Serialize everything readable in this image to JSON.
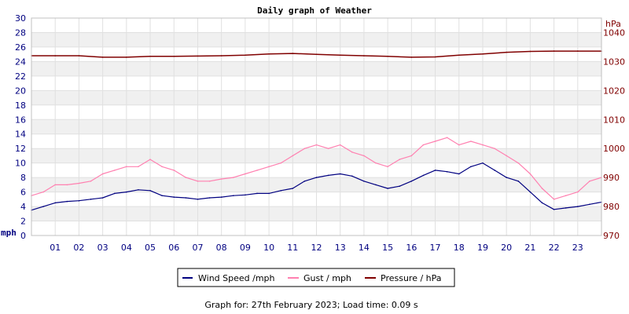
{
  "chart_data": {
    "type": "line",
    "title": "Daily graph of Weather",
    "left_axis": {
      "unit_label": "mph",
      "ylim": [
        0,
        30
      ],
      "ticks": [
        "0",
        "2",
        "4",
        "6",
        "8",
        "10",
        "12",
        "14",
        "16",
        "18",
        "20",
        "22",
        "24",
        "26",
        "28",
        "30"
      ]
    },
    "right_axis": {
      "unit_label": "hPa",
      "ylim": [
        970,
        1045
      ],
      "ticks": [
        "970",
        "980",
        "990",
        "1000",
        "1010",
        "1020",
        "1030",
        "1040"
      ]
    },
    "x_axis": {
      "xlim": [
        0,
        24
      ],
      "ticks": [
        "01",
        "02",
        "03",
        "04",
        "05",
        "06",
        "07",
        "08",
        "09",
        "10",
        "11",
        "12",
        "13",
        "14",
        "15",
        "16",
        "17",
        "18",
        "19",
        "20",
        "21",
        "22",
        "23"
      ]
    },
    "grid": true,
    "legend_position": "bottom",
    "series": [
      {
        "name": "Wind Speed /mph",
        "axis": "left",
        "color": "#000080",
        "x": [
          0,
          0.5,
          1,
          1.5,
          2,
          2.5,
          3,
          3.5,
          4,
          4.5,
          5,
          5.5,
          6,
          6.5,
          7,
          7.5,
          8,
          8.5,
          9,
          9.5,
          10,
          10.5,
          11,
          11.5,
          12,
          12.5,
          13,
          13.5,
          14,
          14.5,
          15,
          15.5,
          16,
          16.5,
          17,
          17.5,
          18,
          18.5,
          19,
          19.5,
          20,
          20.5,
          21,
          21.5,
          22,
          22.5,
          23,
          23.5,
          24
        ],
        "values": [
          3.5,
          4.0,
          4.5,
          4.7,
          4.8,
          5.0,
          5.2,
          5.8,
          6.0,
          6.3,
          6.2,
          5.5,
          5.3,
          5.2,
          5.0,
          5.2,
          5.3,
          5.5,
          5.6,
          5.8,
          5.8,
          6.2,
          6.5,
          7.5,
          8.0,
          8.3,
          8.5,
          8.2,
          7.5,
          7.0,
          6.5,
          6.8,
          7.5,
          8.3,
          9.0,
          8.8,
          8.5,
          9.5,
          10.0,
          9.0,
          8.0,
          7.5,
          6.0,
          4.5,
          3.6,
          3.8,
          4.0,
          4.3,
          4.6
        ]
      },
      {
        "name": "Gust / mph",
        "axis": "left",
        "color": "#ff80b0",
        "x": [
          0,
          0.5,
          1,
          1.5,
          2,
          2.5,
          3,
          3.5,
          4,
          4.5,
          5,
          5.5,
          6,
          6.5,
          7,
          7.5,
          8,
          8.5,
          9,
          9.5,
          10,
          10.5,
          11,
          11.5,
          12,
          12.5,
          13,
          13.5,
          14,
          14.5,
          15,
          15.5,
          16,
          16.5,
          17,
          17.5,
          18,
          18.5,
          19,
          19.5,
          20,
          20.5,
          21,
          21.5,
          22,
          22.5,
          23,
          23.5,
          24
        ],
        "values": [
          5.5,
          6.0,
          7.0,
          7.0,
          7.2,
          7.5,
          8.5,
          9.0,
          9.5,
          9.5,
          10.5,
          9.5,
          9.0,
          8.0,
          7.5,
          7.5,
          7.8,
          8.0,
          8.5,
          9.0,
          9.5,
          10.0,
          11.0,
          12.0,
          12.5,
          12.0,
          12.5,
          11.5,
          11.0,
          10.0,
          9.5,
          10.5,
          11.0,
          12.5,
          13.0,
          13.5,
          12.5,
          13.0,
          12.5,
          12.0,
          11.0,
          10.0,
          8.5,
          6.5,
          5.0,
          5.5,
          6.0,
          7.5,
          8.0
        ]
      },
      {
        "name": "Pressure / hPa",
        "axis": "right",
        "color": "#800000",
        "x": [
          0,
          1,
          2,
          3,
          4,
          5,
          6,
          7,
          8,
          9,
          10,
          11,
          12,
          13,
          14,
          15,
          16,
          17,
          18,
          19,
          20,
          21,
          22,
          23,
          24
        ],
        "values": [
          1032,
          1032,
          1032,
          1031.5,
          1031.5,
          1031.8,
          1031.8,
          1031.9,
          1032.0,
          1032.2,
          1032.6,
          1032.8,
          1032.5,
          1032.2,
          1032.0,
          1031.8,
          1031.5,
          1031.6,
          1032.2,
          1032.6,
          1033.2,
          1033.5,
          1033.6,
          1033.6,
          1033.6
        ]
      }
    ],
    "legend": [
      {
        "label": "Wind Speed /mph",
        "color": "#000080"
      },
      {
        "label": "Gust / mph",
        "color": "#ff80b0"
      },
      {
        "label": "Pressure / hPa",
        "color": "#800000"
      }
    ],
    "footer": "Graph for: 27th February 2023; Load time: 0.09 s"
  }
}
